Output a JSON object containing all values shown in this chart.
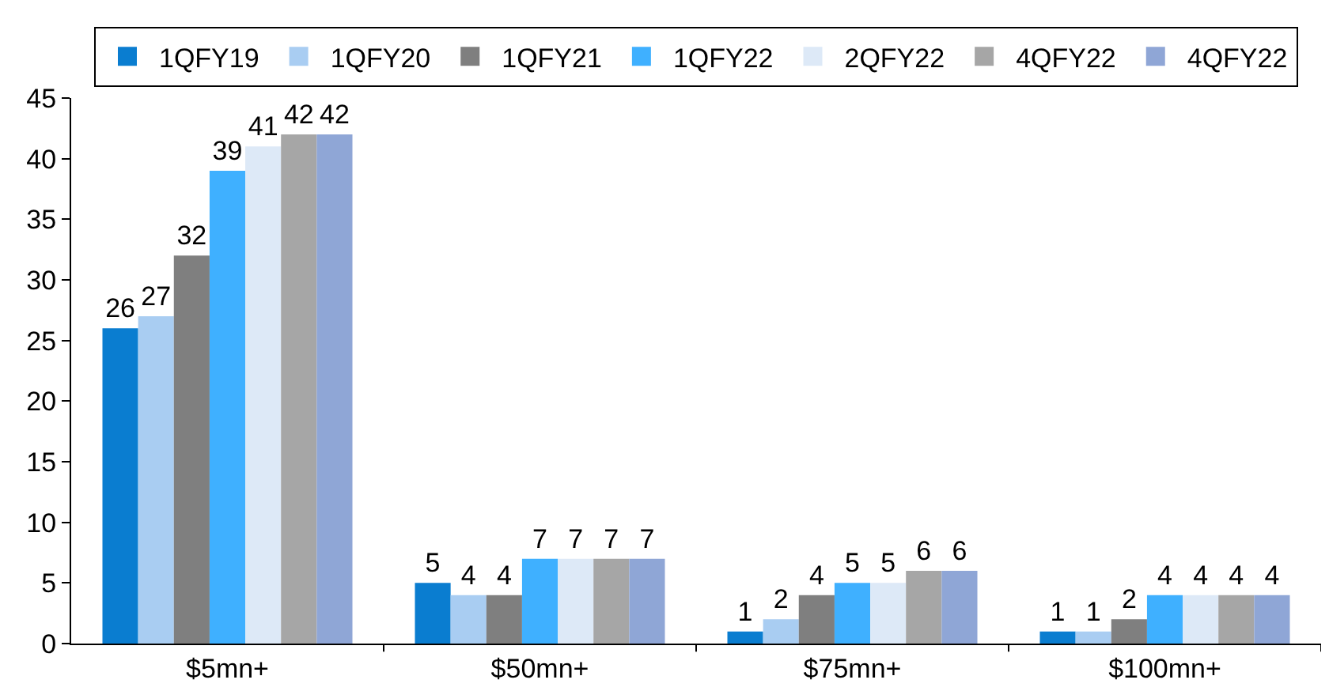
{
  "chart_data": {
    "type": "bar",
    "categories": [
      "$5mn+",
      "$50mn+",
      "$75mn+",
      "$100mn+"
    ],
    "series": [
      {
        "name": "1QFY19",
        "color": "#0a7dd0",
        "values": [
          26,
          5,
          1,
          1
        ]
      },
      {
        "name": "1QFY20",
        "color": "#a9cdf2",
        "values": [
          27,
          4,
          2,
          1
        ]
      },
      {
        "name": "1QFY21",
        "color": "#7f7f7f",
        "values": [
          32,
          4,
          4,
          2
        ]
      },
      {
        "name": "1QFY22",
        "color": "#3fb0ff",
        "values": [
          39,
          7,
          5,
          4
        ]
      },
      {
        "name": "2QFY22",
        "color": "#dde9f7",
        "values": [
          41,
          7,
          5,
          4
        ]
      },
      {
        "name": "4QFY22",
        "color": "#a6a6a6",
        "values": [
          42,
          7,
          6,
          4
        ]
      },
      {
        "name": "4QFY22",
        "color": "#8fa6d6",
        "values": [
          42,
          7,
          6,
          4
        ]
      }
    ],
    "ylim": [
      0,
      45
    ],
    "yticks": [
      0,
      5,
      10,
      15,
      20,
      25,
      30,
      35,
      40,
      45
    ],
    "grid": false,
    "legend": "top",
    "data_labels": true
  }
}
